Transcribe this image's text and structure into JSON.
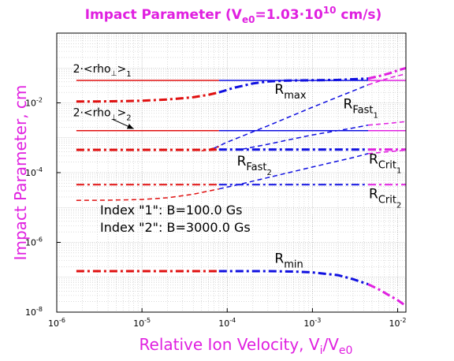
{
  "chart_data": {
    "type": "line",
    "title": {
      "main": "Impact Parameter (V",
      "sub": "e0",
      "mid": "=1.03·10",
      "sup": "10",
      "end": " cm/s)"
    },
    "xlabel": {
      "main": "Relative Ion Velocity, V",
      "sub1": "i",
      "mid": "/V",
      "sub2": "e0"
    },
    "ylabel": "Impact Parameter, cm",
    "x_scale": "log",
    "y_scale": "log",
    "xlim": [
      1e-06,
      0.0125
    ],
    "ylim": [
      1e-08,
      1
    ],
    "grid": true,
    "minor_grid": true,
    "colors": {
      "title": "#e020e0",
      "axis_label": "#e020e0",
      "red": "#e01010",
      "blue": "#1010e0",
      "magenta": "#e020e0"
    },
    "x_ticks": [
      {
        "base": "10",
        "exp": "-6",
        "value": 1e-06
      },
      {
        "base": "10",
        "exp": "-5",
        "value": 1e-05
      },
      {
        "base": "10",
        "exp": "-4",
        "value": 0.0001
      },
      {
        "base": "10",
        "exp": "-3",
        "value": 0.001
      },
      {
        "base": "10",
        "exp": "-2",
        "value": 0.01
      }
    ],
    "y_ticks": [
      {
        "base": "10",
        "exp": "-8",
        "value": 1e-08
      },
      {
        "base": "10",
        "exp": "-6",
        "value": 1e-06
      },
      {
        "base": "10",
        "exp": "-4",
        "value": 0.0001
      },
      {
        "base": "10",
        "exp": "-2",
        "value": 0.01
      }
    ],
    "series": [
      {
        "id": "rho1",
        "style": "solid",
        "width": 1.5,
        "segments": [
          {
            "color": "red",
            "points": [
              [
                1.7e-06,
                0.044
              ],
              [
                8e-05,
                0.044
              ]
            ]
          },
          {
            "color": "blue",
            "points": [
              [
                8e-05,
                0.044
              ],
              [
                0.0045,
                0.044
              ]
            ]
          },
          {
            "color": "magenta",
            "points": [
              [
                0.0045,
                0.044
              ],
              [
                0.0125,
                0.044
              ]
            ]
          }
        ]
      },
      {
        "id": "rmax",
        "style": "dashdot",
        "width": 3,
        "segments": [
          {
            "color": "red",
            "points": [
              [
                1.7e-06,
                0.011
              ],
              [
                3e-06,
                0.011
              ],
              [
                6e-06,
                0.0112
              ],
              [
                1e-05,
                0.0115
              ],
              [
                2e-05,
                0.0125
              ],
              [
                4e-05,
                0.0145
              ],
              [
                6e-05,
                0.017
              ],
              [
                8e-05,
                0.02
              ]
            ]
          },
          {
            "color": "blue",
            "points": [
              [
                8e-05,
                0.02
              ],
              [
                0.00012,
                0.027
              ],
              [
                0.0002,
                0.036
              ],
              [
                0.0003,
                0.041
              ],
              [
                0.0005,
                0.0435
              ],
              [
                0.001,
                0.0445
              ],
              [
                0.002,
                0.0455
              ],
              [
                0.0045,
                0.05
              ]
            ]
          },
          {
            "color": "magenta",
            "points": [
              [
                0.0045,
                0.05
              ],
              [
                0.006,
                0.058
              ],
              [
                0.008,
                0.07
              ],
              [
                0.01,
                0.085
              ],
              [
                0.0125,
                0.1
              ]
            ]
          }
        ]
      },
      {
        "id": "rfast1",
        "style": "dashed",
        "width": 1.5,
        "segments": [
          {
            "color": "blue",
            "points": [
              [
                7e-05,
                0.0005
              ],
              [
                0.0001,
                0.00075
              ],
              [
                0.0003,
                0.0022
              ],
              [
                0.001,
                0.0075
              ],
              [
                0.003,
                0.022
              ],
              [
                0.0045,
                0.033
              ]
            ]
          },
          {
            "color": "magenta",
            "points": [
              [
                0.0045,
                0.033
              ],
              [
                0.008,
                0.052
              ],
              [
                0.0125,
                0.068
              ]
            ]
          }
        ]
      },
      {
        "id": "rho2",
        "style": "solid",
        "width": 1.5,
        "segments": [
          {
            "color": "red",
            "points": [
              [
                1.7e-06,
                0.0016
              ],
              [
                8e-05,
                0.0016
              ]
            ]
          },
          {
            "color": "blue",
            "points": [
              [
                8e-05,
                0.0016
              ],
              [
                0.0045,
                0.0016
              ]
            ]
          },
          {
            "color": "magenta",
            "points": [
              [
                0.0045,
                0.0016
              ],
              [
                0.0125,
                0.0016
              ]
            ]
          }
        ]
      },
      {
        "id": "rfast_upper",
        "style": "dashed",
        "width": 1.5,
        "segments": [
          {
            "color": "blue",
            "points": [
              [
                0.00015,
                0.00047
              ],
              [
                0.0003,
                0.00065
              ],
              [
                0.0005,
                0.00085
              ],
              [
                0.001,
                0.0012
              ],
              [
                0.003,
                0.0019
              ],
              [
                0.0045,
                0.0023
              ]
            ]
          },
          {
            "color": "magenta",
            "points": [
              [
                0.0045,
                0.0023
              ],
              [
                0.008,
                0.0026
              ],
              [
                0.0125,
                0.0029
              ]
            ]
          }
        ]
      },
      {
        "id": "rcrit1",
        "style": "dashdot",
        "width": 3,
        "segments": [
          {
            "color": "red",
            "points": [
              [
                1.7e-06,
                0.00045
              ],
              [
                6e-05,
                0.00045
              ],
              [
                8e-05,
                0.00046
              ]
            ]
          },
          {
            "color": "blue",
            "points": [
              [
                8e-05,
                0.00046
              ],
              [
                0.00012,
                0.00046
              ],
              [
                0.0045,
                0.00046
              ]
            ]
          },
          {
            "color": "magenta",
            "points": [
              [
                0.0045,
                0.00046
              ],
              [
                0.0125,
                0.00046
              ]
            ]
          }
        ]
      },
      {
        "id": "rfast2_red",
        "style": "dashed",
        "width": 1.5,
        "segments": [
          {
            "color": "red",
            "points": [
              [
                5e-05,
                0.00042
              ],
              [
                6e-05,
                0.00046
              ],
              [
                8e-05,
                0.00055
              ]
            ]
          }
        ]
      },
      {
        "id": "rcrit2",
        "style": "dashdot",
        "width": 2,
        "segments": [
          {
            "color": "red",
            "points": [
              [
                1.7e-06,
                4.5e-05
              ],
              [
                8e-05,
                4.5e-05
              ]
            ]
          },
          {
            "color": "blue",
            "points": [
              [
                8e-05,
                4.5e-05
              ],
              [
                0.0045,
                4.5e-05
              ]
            ]
          },
          {
            "color": "magenta",
            "points": [
              [
                0.0045,
                4.5e-05
              ],
              [
                0.0125,
                4.5e-05
              ]
            ]
          }
        ]
      },
      {
        "id": "rfast2",
        "style": "dashed",
        "width": 1.5,
        "segments": [
          {
            "color": "red",
            "points": [
              [
                1.7e-06,
                1.6e-05
              ],
              [
                4e-06,
                1.62e-05
              ],
              [
                1e-05,
                1.7e-05
              ],
              [
                2e-05,
                1.9e-05
              ],
              [
                4e-05,
                2.4e-05
              ],
              [
                8e-05,
                3.4e-05
              ]
            ]
          },
          {
            "color": "blue",
            "points": [
              [
                8e-05,
                3.4e-05
              ],
              [
                0.00015,
                4.8e-05
              ],
              [
                0.0003,
                7.2e-05
              ],
              [
                0.001,
                0.000145
              ],
              [
                0.003,
                0.00027
              ],
              [
                0.0045,
                0.00035
              ]
            ]
          },
          {
            "color": "magenta",
            "points": [
              [
                0.0045,
                0.00035
              ],
              [
                0.008,
                0.0004
              ],
              [
                0.0125,
                0.00044
              ]
            ]
          }
        ]
      },
      {
        "id": "rmin",
        "style": "dashdot",
        "width": 3,
        "segments": [
          {
            "color": "red",
            "points": [
              [
                1.7e-06,
                1.5e-07
              ],
              [
                8e-05,
                1.5e-07
              ]
            ]
          },
          {
            "color": "blue",
            "points": [
              [
                8e-05,
                1.5e-07
              ],
              [
                0.0003,
                1.5e-07
              ],
              [
                0.0006,
                1.46e-07
              ],
              [
                0.001,
                1.38e-07
              ],
              [
                0.002,
                1.15e-07
              ],
              [
                0.003,
                8.8e-08
              ],
              [
                0.0045,
                6.3e-08
              ]
            ]
          },
          {
            "color": "magenta",
            "points": [
              [
                0.0045,
                6.3e-08
              ],
              [
                0.006,
                4.5e-08
              ],
              [
                0.008,
                3e-08
              ],
              [
                0.01,
                2.2e-08
              ],
              [
                0.0125,
                1.5e-08
              ]
            ]
          }
        ]
      }
    ],
    "annotations": [
      {
        "id": "label-rho1",
        "main": "2·<rho",
        "sub": "⊥",
        "end": ">",
        "sub2": "1",
        "x": 1.55e-06,
        "y": 0.075
      },
      {
        "id": "label-rho2",
        "main": "2·<rho",
        "sub": "⊥",
        "end": ">",
        "sub2": "2",
        "x": 1.55e-06,
        "y": 0.0041
      },
      {
        "id": "label-rmax",
        "main": "R",
        "sub": "max",
        "x": 0.00036,
        "y": 0.018
      },
      {
        "id": "label-rfast1",
        "main": "R",
        "sub": "Fast",
        "sub2": "1",
        "x": 0.0023,
        "y": 0.0069
      },
      {
        "id": "label-rfast2",
        "main": "R",
        "sub": "Fast",
        "sub2": "2",
        "x": 0.00013,
        "y": 0.00016
      },
      {
        "id": "label-rcrit1",
        "main": "R",
        "sub": "Crit",
        "sub2": "1",
        "x": 0.0046,
        "y": 0.00018
      },
      {
        "id": "label-rcrit2",
        "main": "R",
        "sub": "Crit",
        "sub2": "2",
        "x": 0.0046,
        "y": 1.85e-05
      },
      {
        "id": "label-rmin",
        "main": "R",
        "sub": "min",
        "x": 0.00036,
        "y": 2.6e-07
      }
    ],
    "arrow": {
      "from": [
        4.5e-06,
        0.0034
      ],
      "to": [
        8e-06,
        0.0018
      ]
    },
    "index_notes": [
      "Index \"1\": B=100.0  Gs",
      "Index \"2\": B=3000.0 Gs"
    ]
  }
}
